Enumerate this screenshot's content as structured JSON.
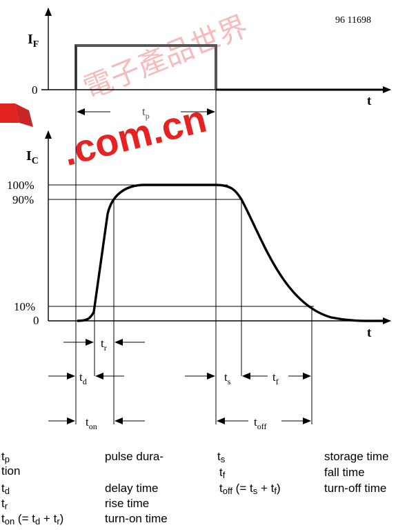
{
  "figure_id": "96 11698",
  "watermark": "電子產品世界 .com.cn",
  "top_plot": {
    "ylabel_main": "I",
    "ylabel_sub": "F",
    "zero": "0",
    "xlabel": "t",
    "tp_main": "t",
    "tp_sub": "p"
  },
  "bottom_plot": {
    "ylabel_main": "I",
    "ylabel_sub": "C",
    "levels": [
      "100%",
      "90%",
      "10%",
      "0"
    ],
    "xlabel": "t"
  },
  "intervals": {
    "tr": {
      "main": "t",
      "sub": "r"
    },
    "td": {
      "main": "t",
      "sub": "d"
    },
    "ts": {
      "main": "t",
      "sub": "s"
    },
    "tf": {
      "main": "t",
      "sub": "f"
    },
    "ton": {
      "main": "t",
      "sub": "on"
    },
    "toff": {
      "main": "t",
      "sub": "off"
    }
  },
  "legend": {
    "left": [
      {
        "sym": "t",
        "sub": "p",
        "tail": "",
        "desc": "pulse dura-"
      },
      {
        "sym": "tion",
        "sub": "",
        "tail": "",
        "desc": ""
      },
      {
        "sym": "t",
        "sub": "d",
        "tail": "",
        "desc": "delay time"
      },
      {
        "sym": "t",
        "sub": "r",
        "tail": "",
        "desc": "rise time"
      },
      {
        "sym": "t",
        "sub": "on",
        "tail": " (= t",
        "sub2": "d",
        "tail2": " + t",
        "sub3": "r",
        "tail3": ")",
        "desc": "turn-on time"
      }
    ],
    "right": [
      {
        "sym": "t",
        "sub": "s",
        "desc": "storage time"
      },
      {
        "sym": "t",
        "sub": "f",
        "desc": "fall time"
      },
      {
        "sym": "t",
        "sub": "off",
        "tail": " (= t",
        "sub2": "s",
        "tail2": " + t",
        "sub3": "f",
        "tail3": ")",
        "desc": "turn-off time"
      }
    ]
  }
}
